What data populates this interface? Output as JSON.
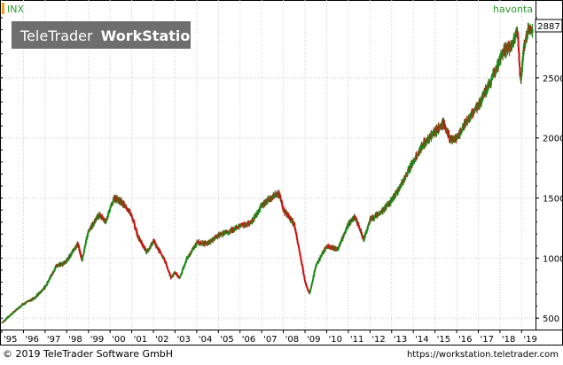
{
  "watermark": {
    "brand": "TeleTrader",
    "product": "WorkStation"
  },
  "footer": {
    "copyright": "© 2019 TeleTrader Software GmbH",
    "url": "https://workstation.teletrader.com"
  },
  "colors": {
    "up": "#1a8c1a",
    "down": "#cc1111",
    "grid": "#c8c8c8",
    "accent": "#f0a020",
    "watermark_bg": "#6e6e6e",
    "label_green": "#2e9a2e"
  },
  "chart_data": {
    "type": "line",
    "title": "INX",
    "source_label": "havonta",
    "last_value_label": "2887",
    "x_ticks": [
      "'95",
      "'96",
      "'97",
      "'98",
      "'99",
      "'00",
      "'01",
      "'02",
      "'03",
      "'04",
      "'05",
      "'06",
      "'07",
      "'08",
      "'09",
      "'10",
      "'11",
      "'12",
      "'13",
      "'14",
      "'15",
      "'16",
      "'17",
      "'18",
      "'19"
    ],
    "y_ticks": [
      500,
      1000,
      1500,
      2000,
      2500
    ],
    "ylim": [
      420,
      3030
    ],
    "xlim": [
      1995.0,
      2019.6
    ],
    "grid": true,
    "series": [
      {
        "x": [
          1995.0,
          1995.5,
          1996.0,
          1996.5,
          1997.0,
          1997.5,
          1997.8,
          1998.0,
          1998.5,
          1998.7,
          1999.0,
          1999.5,
          1999.8,
          2000.0,
          2000.2,
          2000.5,
          2000.7,
          2001.0,
          2001.3,
          2001.7,
          2002.0,
          2002.5,
          2002.8,
          2003.0,
          2003.2,
          2003.5,
          2004.0,
          2004.5,
          2005.0,
          2005.5,
          2006.0,
          2006.5,
          2007.0,
          2007.5,
          2007.8,
          2008.0,
          2008.5,
          2008.8,
          2009.0,
          2009.2,
          2009.5,
          2010.0,
          2010.5,
          2011.0,
          2011.3,
          2011.7,
          2012.0,
          2012.5,
          2013.0,
          2013.5,
          2014.0,
          2014.5,
          2015.0,
          2015.4,
          2015.7,
          2016.0,
          2016.5,
          2017.0,
          2017.5,
          2018.0,
          2018.2,
          2018.5,
          2018.8,
          2018.95,
          2019.1,
          2019.3,
          2019.5
        ],
        "values": [
          460,
          545,
          620,
          665,
          760,
          930,
          950,
          980,
          1120,
          985,
          1230,
          1360,
          1300,
          1420,
          1500,
          1470,
          1430,
          1350,
          1170,
          1050,
          1140,
          990,
          840,
          880,
          830,
          980,
          1130,
          1120,
          1190,
          1220,
          1270,
          1290,
          1440,
          1510,
          1540,
          1400,
          1280,
          1000,
          800,
          700,
          940,
          1100,
          1070,
          1280,
          1350,
          1150,
          1320,
          1380,
          1480,
          1630,
          1810,
          1960,
          2050,
          2120,
          1990,
          2000,
          2150,
          2270,
          2440,
          2650,
          2730,
          2760,
          2900,
          2460,
          2750,
          2900,
          2900
        ]
      }
    ]
  }
}
